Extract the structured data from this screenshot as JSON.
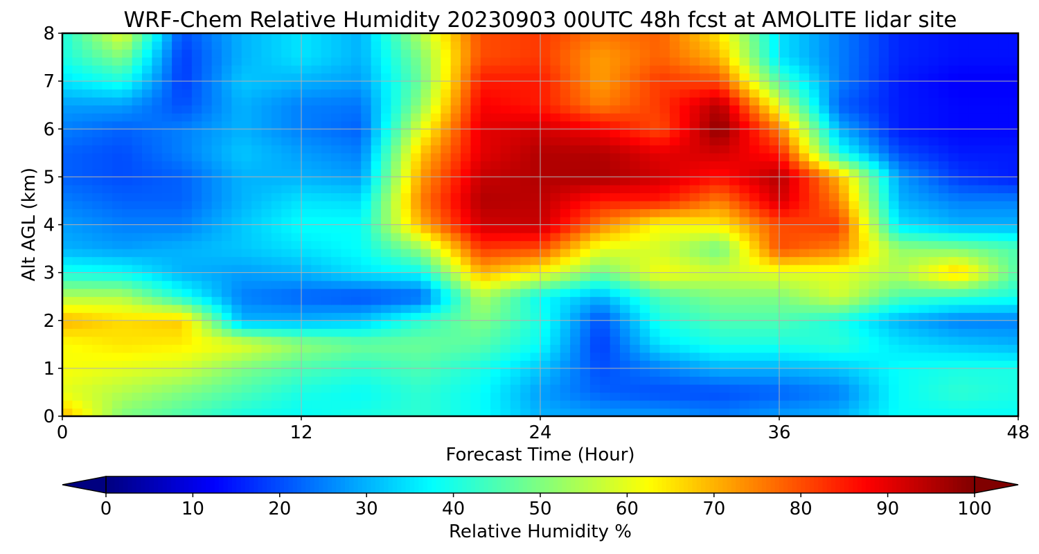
{
  "chart_data": {
    "type": "heatmap",
    "title": "WRF-Chem Relative Humidity 20230903 00UTC 48h fcst at AMOLITE lidar site",
    "xlabel": "Forecast Time (Hour)",
    "ylabel": "Alt AGL (km)",
    "xlim": [
      0,
      48
    ],
    "ylim": [
      0,
      8
    ],
    "x_ticks": [
      "0",
      "12",
      "24",
      "36",
      "48"
    ],
    "y_ticks": [
      "0",
      "1",
      "2",
      "3",
      "4",
      "5",
      "6",
      "7",
      "8"
    ],
    "grid": true,
    "colormap": "jet",
    "colorbar": {
      "label": "Relative Humidity %",
      "range": [
        0,
        100
      ],
      "ticks": [
        "0",
        "10",
        "20",
        "30",
        "40",
        "50",
        "60",
        "70",
        "80",
        "90",
        "100"
      ],
      "extend": "both",
      "orientation": "horizontal"
    },
    "x": [
      0,
      3,
      6,
      9,
      12,
      15,
      18,
      21,
      24,
      27,
      30,
      33,
      36,
      39,
      42,
      45,
      48
    ],
    "y": [
      0,
      0.5,
      1,
      1.5,
      2,
      2.5,
      3,
      3.5,
      4,
      4.5,
      5,
      5.5,
      6,
      6.5,
      7,
      7.5,
      8
    ],
    "z": [
      [
        70,
        50,
        45,
        40,
        38,
        40,
        42,
        38,
        30,
        28,
        28,
        25,
        28,
        30,
        38,
        38,
        38
      ],
      [
        60,
        55,
        50,
        45,
        40,
        38,
        42,
        38,
        28,
        22,
        20,
        20,
        22,
        25,
        38,
        42,
        40
      ],
      [
        62,
        60,
        58,
        50,
        45,
        42,
        45,
        40,
        32,
        20,
        25,
        30,
        30,
        32,
        38,
        40,
        40
      ],
      [
        62,
        65,
        64,
        60,
        52,
        48,
        48,
        46,
        38,
        18,
        35,
        40,
        40,
        42,
        35,
        32,
        30
      ],
      [
        70,
        66,
        68,
        30,
        30,
        32,
        42,
        50,
        40,
        20,
        40,
        45,
        45,
        40,
        30,
        25,
        25
      ],
      [
        55,
        55,
        40,
        25,
        22,
        20,
        22,
        55,
        38,
        30,
        45,
        50,
        50,
        58,
        45,
        42,
        40
      ],
      [
        40,
        38,
        30,
        28,
        30,
        35,
        38,
        70,
        62,
        48,
        62,
        58,
        60,
        60,
        55,
        68,
        45
      ],
      [
        30,
        28,
        30,
        32,
        35,
        38,
        52,
        82,
        80,
        60,
        58,
        48,
        80,
        75,
        52,
        50,
        45
      ],
      [
        28,
        25,
        25,
        32,
        38,
        38,
        70,
        92,
        93,
        75,
        62,
        64,
        80,
        82,
        35,
        30,
        30
      ],
      [
        25,
        22,
        22,
        30,
        35,
        34,
        75,
        95,
        94,
        85,
        85,
        75,
        92,
        75,
        30,
        25,
        25
      ],
      [
        22,
        20,
        22,
        30,
        30,
        28,
        72,
        93,
        95,
        96,
        92,
        86,
        95,
        70,
        28,
        18,
        15
      ],
      [
        22,
        20,
        25,
        32,
        28,
        25,
        68,
        90,
        95,
        95,
        90,
        92,
        85,
        40,
        20,
        15,
        15
      ],
      [
        25,
        22,
        25,
        30,
        25,
        22,
        60,
        90,
        92,
        88,
        80,
        99,
        75,
        30,
        15,
        13,
        13
      ],
      [
        28,
        28,
        20,
        30,
        25,
        24,
        52,
        88,
        85,
        75,
        82,
        95,
        60,
        22,
        15,
        13,
        13
      ],
      [
        35,
        40,
        18,
        32,
        30,
        28,
        48,
        85,
        85,
        72,
        82,
        80,
        45,
        25,
        15,
        12,
        12
      ],
      [
        40,
        50,
        18,
        30,
        35,
        30,
        50,
        80,
        82,
        72,
        78,
        70,
        35,
        25,
        16,
        14,
        14
      ],
      [
        40,
        60,
        20,
        30,
        35,
        30,
        55,
        80,
        82,
        76,
        78,
        65,
        35,
        25,
        16,
        14,
        14
      ]
    ]
  }
}
